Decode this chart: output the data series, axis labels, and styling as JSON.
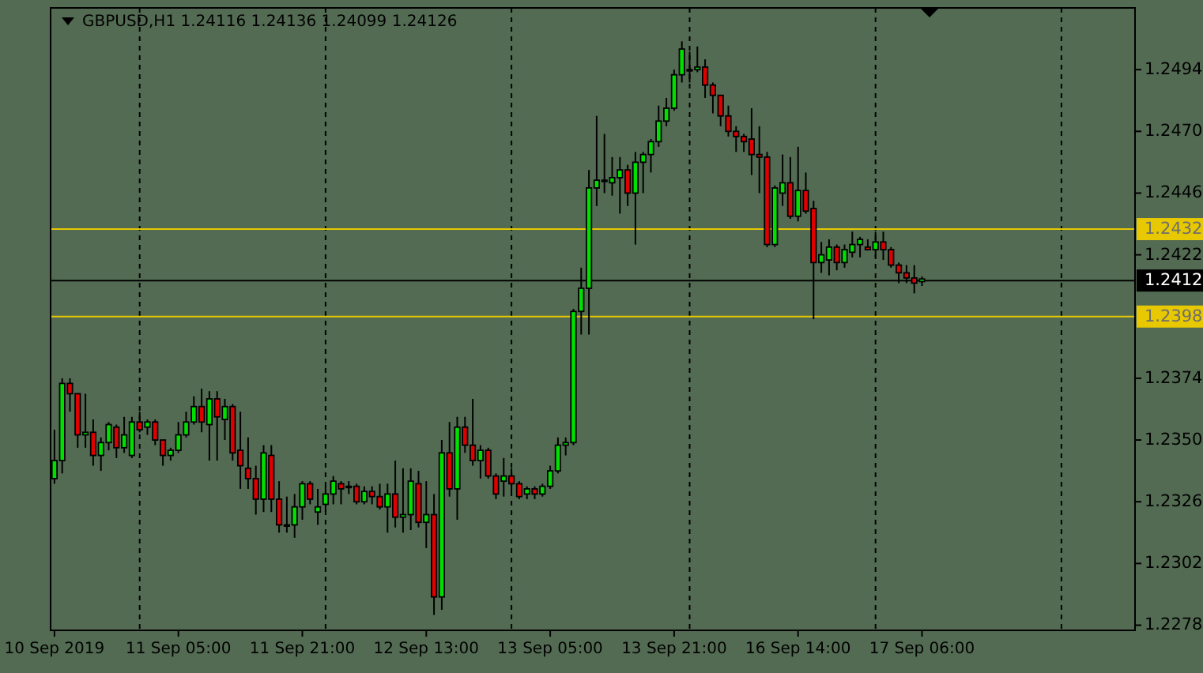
{
  "chart_data": {
    "type": "candlestick",
    "title": "GBPUSD,H1 1.24116 1.24136 1.24099 1.24126",
    "categories": [
      "10 Sep 2019",
      null,
      null,
      null,
      null,
      null,
      null,
      null,
      null,
      null,
      null,
      null,
      null,
      null,
      null,
      null,
      "11 Sep 05:00",
      null,
      null,
      null,
      null,
      null,
      null,
      null,
      null,
      null,
      null,
      null,
      null,
      null,
      null,
      null,
      "11 Sep 21:00",
      null,
      null,
      null,
      null,
      null,
      null,
      null,
      null,
      null,
      null,
      null,
      null,
      null,
      null,
      null,
      "12 Sep 13:00",
      null,
      null,
      null,
      null,
      null,
      null,
      null,
      null,
      null,
      null,
      null,
      null,
      null,
      null,
      null,
      "13 Sep 05:00",
      null,
      null,
      null,
      null,
      null,
      null,
      null,
      null,
      null,
      null,
      null,
      null,
      null,
      null,
      null,
      "13 Sep 21:00",
      null,
      null,
      null,
      null,
      null,
      null,
      null,
      null,
      null,
      null,
      null,
      null,
      null,
      null,
      null,
      "16 Sep 14:00",
      null,
      null,
      null,
      null,
      null,
      null,
      null,
      null,
      null,
      null,
      null,
      null,
      null,
      null,
      null,
      "17 Sep 06:00",
      null,
      null,
      null,
      null,
      null,
      null,
      null,
      null,
      null,
      null,
      null,
      null,
      null,
      null,
      null,
      null,
      null,
      null,
      null,
      null,
      null,
      null,
      null,
      null,
      null,
      null,
      null
    ],
    "ohlc": [
      [
        1.2335,
        1.2354,
        1.2333,
        1.2342
      ],
      [
        1.2342,
        1.2374,
        1.2337,
        1.2372
      ],
      [
        1.2372,
        1.2374,
        1.2361,
        1.2368
      ],
      [
        1.2368,
        1.2368,
        1.2347,
        1.2352
      ],
      [
        1.2352,
        1.2368,
        1.2347,
        1.2353
      ],
      [
        1.2353,
        1.2358,
        1.234,
        1.2344
      ],
      [
        1.2344,
        1.2351,
        1.2338,
        1.2349
      ],
      [
        1.2349,
        1.2357,
        1.2346,
        1.2356
      ],
      [
        1.2355,
        1.2356,
        1.2343,
        1.2347
      ],
      [
        1.2347,
        1.2359,
        1.2345,
        1.2352
      ],
      [
        1.2344,
        1.2359,
        1.2343,
        1.2357
      ],
      [
        1.2357,
        1.2361,
        1.2353,
        1.2354
      ],
      [
        1.2355,
        1.2358,
        1.2352,
        1.2357
      ],
      [
        1.2357,
        1.2358,
        1.2348,
        1.235
      ],
      [
        1.235,
        1.235,
        1.234,
        1.2344
      ],
      [
        1.2344,
        1.2347,
        1.2342,
        1.2346
      ],
      [
        1.2346,
        1.2357,
        1.2345,
        1.2352
      ],
      [
        1.2352,
        1.2361,
        1.2351,
        1.2357
      ],
      [
        1.2357,
        1.2367,
        1.2356,
        1.2363
      ],
      [
        1.2363,
        1.237,
        1.2353,
        1.2357
      ],
      [
        1.2356,
        1.2369,
        1.2342,
        1.2366
      ],
      [
        1.2366,
        1.2369,
        1.2342,
        1.2359
      ],
      [
        1.2358,
        1.2366,
        1.235,
        1.2363
      ],
      [
        1.2363,
        1.2364,
        1.2342,
        1.2345
      ],
      [
        1.2346,
        1.2361,
        1.2331,
        1.234
      ],
      [
        1.2339,
        1.2351,
        1.2331,
        1.2335
      ],
      [
        1.2335,
        1.234,
        1.2321,
        1.2327
      ],
      [
        1.2327,
        1.2348,
        1.2322,
        1.2345
      ],
      [
        1.2344,
        1.2348,
        1.2322,
        1.2327
      ],
      [
        1.2327,
        1.2334,
        1.2314,
        1.2317
      ],
      [
        1.2317,
        1.2328,
        1.2314,
        1.2317
      ],
      [
        1.2317,
        1.2329,
        1.2312,
        1.2324
      ],
      [
        1.2324,
        1.2334,
        1.2319,
        1.2333
      ],
      [
        1.2333,
        1.2334,
        1.2325,
        1.2327
      ],
      [
        1.2322,
        1.2331,
        1.2317,
        1.2324
      ],
      [
        1.2325,
        1.2332,
        1.2322,
        1.2329
      ],
      [
        1.2329,
        1.2336,
        1.2325,
        1.2334
      ],
      [
        1.2333,
        1.2334,
        1.2325,
        1.2331
      ],
      [
        1.2332,
        1.2334,
        1.2329,
        1.2332
      ],
      [
        1.2332,
        1.2333,
        1.2325,
        1.2326
      ],
      [
        1.2326,
        1.2332,
        1.2325,
        1.233
      ],
      [
        1.233,
        1.2332,
        1.2325,
        1.2328
      ],
      [
        1.2328,
        1.2333,
        1.2323,
        1.2324
      ],
      [
        1.2324,
        1.2333,
        1.2314,
        1.2329
      ],
      [
        1.2329,
        1.2342,
        1.2316,
        1.232
      ],
      [
        1.232,
        1.2339,
        1.2314,
        1.2321
      ],
      [
        1.2321,
        1.2339,
        1.2315,
        1.2334
      ],
      [
        1.2333,
        1.2338,
        1.2316,
        1.2318
      ],
      [
        1.2318,
        1.2334,
        1.2308,
        1.2321
      ],
      [
        1.2321,
        1.2329,
        1.2282,
        1.2289
      ],
      [
        1.2289,
        1.235,
        1.2284,
        1.2345
      ],
      [
        1.2345,
        1.2357,
        1.2328,
        1.2331
      ],
      [
        1.2331,
        1.2359,
        1.2319,
        1.2355
      ],
      [
        1.2355,
        1.2359,
        1.2345,
        1.2348
      ],
      [
        1.2348,
        1.2366,
        1.234,
        1.2342
      ],
      [
        1.2342,
        1.2348,
        1.2335,
        1.2346
      ],
      [
        1.2346,
        1.2347,
        1.2335,
        1.2336
      ],
      [
        1.2336,
        1.2337,
        1.2327,
        1.2329
      ],
      [
        1.2334,
        1.2343,
        1.2328,
        1.2336
      ],
      [
        1.2336,
        1.2339,
        1.233,
        1.2333
      ],
      [
        1.2333,
        1.2334,
        1.2327,
        1.2328
      ],
      [
        1.2329,
        1.2332,
        1.2327,
        1.2331
      ],
      [
        1.2331,
        1.2332,
        1.2327,
        1.2329
      ],
      [
        1.2329,
        1.2333,
        1.2328,
        1.2332
      ],
      [
        1.2332,
        1.234,
        1.2331,
        1.2338
      ],
      [
        1.2338,
        1.2351,
        1.2337,
        1.2348
      ],
      [
        1.2348,
        1.2351,
        1.2344,
        1.2349
      ],
      [
        1.2349,
        1.2401,
        1.2348,
        1.24
      ],
      [
        1.24,
        1.2417,
        1.2391,
        1.2409
      ],
      [
        1.2409,
        1.2455,
        1.2391,
        1.2448
      ],
      [
        1.2448,
        1.2476,
        1.2441,
        1.2451
      ],
      [
        1.2451,
        1.2469,
        1.2446,
        1.2451
      ],
      [
        1.245,
        1.246,
        1.2445,
        1.2452
      ],
      [
        1.2452,
        1.246,
        1.2438,
        1.2455
      ],
      [
        1.2455,
        1.2457,
        1.2441,
        1.2446
      ],
      [
        1.2446,
        1.2462,
        1.2426,
        1.2458
      ],
      [
        1.2458,
        1.2462,
        1.2446,
        1.2461
      ],
      [
        1.2461,
        1.2467,
        1.2454,
        1.2466
      ],
      [
        1.2466,
        1.248,
        1.2464,
        1.2474
      ],
      [
        1.2474,
        1.2483,
        1.2472,
        1.2479
      ],
      [
        1.2479,
        1.2494,
        1.2478,
        1.2492
      ],
      [
        1.2492,
        1.2505,
        1.2489,
        1.2502
      ],
      [
        1.2494,
        1.2501,
        1.2489,
        1.2494
      ],
      [
        1.2494,
        1.2503,
        1.2493,
        1.2495
      ],
      [
        1.2495,
        1.2498,
        1.2483,
        1.2488
      ],
      [
        1.2488,
        1.2489,
        1.2477,
        1.2484
      ],
      [
        1.2484,
        1.2484,
        1.2472,
        1.2476
      ],
      [
        1.2476,
        1.248,
        1.2468,
        1.247
      ],
      [
        1.247,
        1.2472,
        1.2462,
        1.2468
      ],
      [
        1.2468,
        1.2469,
        1.2462,
        1.2466
      ],
      [
        1.2467,
        1.2479,
        1.2453,
        1.2461
      ],
      [
        1.2461,
        1.2472,
        1.2446,
        1.246
      ],
      [
        1.246,
        1.2462,
        1.2425,
        1.2426
      ],
      [
        1.2426,
        1.2449,
        1.2425,
        1.2448
      ],
      [
        1.2446,
        1.2461,
        1.2441,
        1.245
      ],
      [
        1.245,
        1.246,
        1.2436,
        1.2437
      ],
      [
        1.2437,
        1.2464,
        1.2435,
        1.2447
      ],
      [
        1.2447,
        1.2454,
        1.2438,
        1.2439
      ],
      [
        1.244,
        1.2443,
        1.2397,
        1.2419
      ],
      [
        1.2419,
        1.2427,
        1.2415,
        1.2422
      ],
      [
        1.242,
        1.2428,
        1.2414,
        1.2425
      ],
      [
        1.2425,
        1.2426,
        1.2416,
        1.2419
      ],
      [
        1.2419,
        1.2426,
        1.2417,
        1.2424
      ],
      [
        1.2423,
        1.2431,
        1.2421,
        1.2426
      ],
      [
        1.2426,
        1.2429,
        1.2421,
        1.2428
      ],
      [
        1.2425,
        1.2428,
        1.2424,
        1.2424
      ],
      [
        1.2424,
        1.2431,
        1.2421,
        1.2427
      ],
      [
        1.2427,
        1.2431,
        1.242,
        1.2424
      ],
      [
        1.2424,
        1.2425,
        1.2417,
        1.2418
      ],
      [
        1.2418,
        1.2419,
        1.2411,
        1.2415
      ],
      [
        1.2415,
        1.2418,
        1.2411,
        1.2413
      ],
      [
        1.2413,
        1.2418,
        1.2407,
        1.2411
      ],
      [
        1.24116,
        1.24136,
        1.24099,
        1.24126
      ],
      null,
      null,
      null,
      null,
      null,
      null,
      null,
      null,
      null,
      null,
      null,
      null,
      null,
      null,
      null,
      null,
      null,
      null,
      null,
      null,
      null,
      null,
      null,
      null,
      null,
      null,
      null
    ],
    "colors": [
      "#00e000",
      "#00e000",
      "#e00000",
      "#e00000",
      "#00e000",
      "#e00000",
      "#00e000",
      "#00e000",
      "#e00000",
      "#00e000",
      "#00e000",
      "#e00000",
      "#00e000",
      "#e00000",
      "#e00000",
      "#00e000",
      "#00e000",
      "#00e000",
      "#00e000",
      "#e00000",
      "#00e000",
      "#e00000",
      "#00e000",
      "#e00000",
      "#e00000",
      "#e00000",
      "#e00000",
      "#00e000",
      "#e00000",
      "#e00000",
      "#00e000",
      "#00e000",
      "#00e000",
      "#e00000",
      "#00e000",
      "#00e000",
      "#00e000",
      "#e00000",
      "#00e000",
      "#e00000",
      "#00e000",
      "#e00000",
      "#e00000",
      "#00e000",
      "#e00000",
      "#00e000",
      "#00e000",
      "#e00000",
      "#00e000",
      "#e00000",
      "#00e000",
      "#e00000",
      "#00e000",
      "#e00000",
      "#e00000",
      "#00e000",
      "#e00000",
      "#e00000",
      "#00e000",
      "#e00000",
      "#e00000",
      "#00e000",
      "#e00000",
      "#00e000",
      "#00e000",
      "#00e000",
      "#00e000",
      "#00e000",
      "#00e000",
      "#00e000",
      "#00e000",
      "#00e000",
      "#00e000",
      "#00e000",
      "#e00000",
      "#00e000",
      "#00e000",
      "#00e000",
      "#00e000",
      "#00e000",
      "#00e000",
      "#00e000",
      "#00e000",
      "#00e000",
      "#e00000",
      "#e00000",
      "#e00000",
      "#e00000",
      "#e00000",
      "#e00000",
      "#e00000",
      "#e00000",
      "#e00000",
      "#00e000",
      "#00e000",
      "#e00000",
      "#00e000",
      "#e00000",
      "#e00000",
      "#00e000",
      "#00e000",
      "#e00000",
      "#00e000",
      "#00e000",
      "#00e000",
      "#e00000",
      "#00e000",
      "#e00000",
      "#e00000",
      "#e00000",
      "#e00000",
      "#e00000",
      "#00e000",
      null,
      null,
      null,
      null,
      null,
      null,
      null,
      null,
      null,
      null,
      null,
      null,
      null,
      null,
      null,
      null,
      null,
      null,
      null,
      null,
      null,
      null,
      null,
      null,
      null,
      null,
      null
    ],
    "ylim": [
      1.2276,
      1.2518
    ],
    "yticks": [
      1.2494,
      {
        "value": 1.247,
        "label": "1.2470"
      },
      1.2446,
      1.2422,
      1.2374,
      {
        "value": 1.235,
        "label": "1.2350"
      },
      1.2326,
      1.2302,
      1.2278
    ],
    "ref_lines": [
      {
        "axis": "y",
        "value": 1.2432,
        "label": "1.2432",
        "color": "#e8c800",
        "line_style": "solid"
      },
      {
        "axis": "y",
        "value": 1.2398,
        "label": "1.2398",
        "color": "#e8c800",
        "line_style": "solid"
      },
      {
        "axis": "y",
        "value": 1.2412,
        "label": "1.2412",
        "color": "#000000",
        "line_style": "solid"
      }
    ]
  }
}
